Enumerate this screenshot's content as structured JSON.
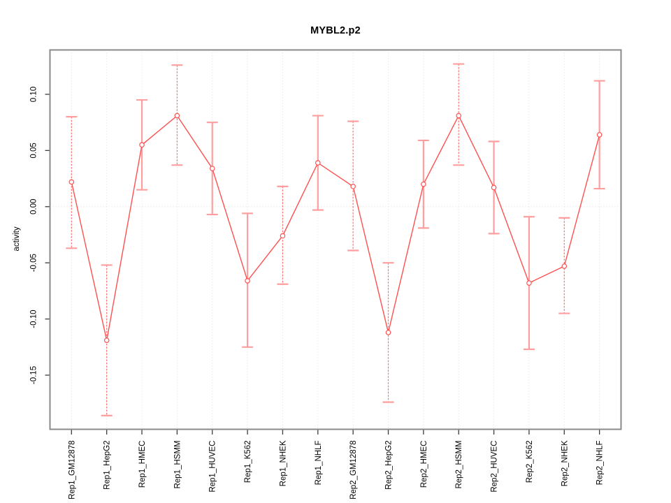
{
  "chart_data": {
    "type": "line",
    "title": "MYBL2.p2",
    "xlabel": "",
    "ylabel": "activity",
    "categories": [
      "Rep1_GM12878",
      "Rep1_HepG2",
      "Rep1_HMEC",
      "Rep1_HSMM",
      "Rep1_HUVEC",
      "Rep1_K562",
      "Rep1_NHEK",
      "Rep1_NHLF",
      "Rep2_GM12878",
      "Rep2_HepG2",
      "Rep2_HMEC",
      "Rep2_HSMM",
      "Rep2_HUVEC",
      "Rep2_K562",
      "Rep2_NHEK",
      "Rep2_NHLF"
    ],
    "series": [
      {
        "name": "activity",
        "values": [
          0.022,
          -0.119,
          0.055,
          0.081,
          0.034,
          -0.066,
          -0.026,
          0.039,
          0.018,
          -0.112,
          0.02,
          0.081,
          0.017,
          -0.068,
          -0.053,
          0.064
        ],
        "error_high": [
          0.08,
          -0.052,
          0.095,
          0.126,
          0.075,
          -0.006,
          0.018,
          0.081,
          0.076,
          -0.05,
          0.059,
          0.127,
          0.058,
          -0.009,
          -0.01,
          0.112
        ],
        "error_low": [
          -0.037,
          -0.186,
          0.015,
          0.037,
          -0.007,
          -0.125,
          -0.069,
          -0.003,
          -0.039,
          -0.174,
          -0.019,
          0.037,
          -0.024,
          -0.127,
          -0.095,
          0.016
        ]
      }
    ],
    "error_bar_styles": [
      "dashed",
      "dashed",
      "solid",
      "dashed",
      "solid",
      "solid",
      "dashed",
      "solid",
      "dashed",
      "dashed",
      "solid",
      "dashed",
      "solid",
      "solid",
      "dashed",
      "solid"
    ],
    "y_ticks": [
      {
        "value": 0.1,
        "label": "0.10"
      },
      {
        "value": 0.05,
        "label": "0.05"
      },
      {
        "value": 0.0,
        "label": "0.00"
      },
      {
        "value": -0.05,
        "label": "-0.05"
      },
      {
        "value": -0.1,
        "label": "-0.10"
      },
      {
        "value": -0.15,
        "label": "-0.15"
      }
    ],
    "ylim": [
      -0.198,
      0.14
    ],
    "grid": {
      "vertical_dotted_per_category": true,
      "horizontal_zero_line_dotted": true
    },
    "legend": {
      "shown": false
    },
    "colors": {
      "line": "#ff5050",
      "point_fill": "#ffffff",
      "error_solid": "#ff9e9e",
      "error_dashed": "#ff6e6e",
      "grid": "#dcdcdc",
      "box": "#8a8a8a",
      "tick": "#3c3c3c",
      "text": "#000000",
      "background": "#ffffff"
    }
  }
}
